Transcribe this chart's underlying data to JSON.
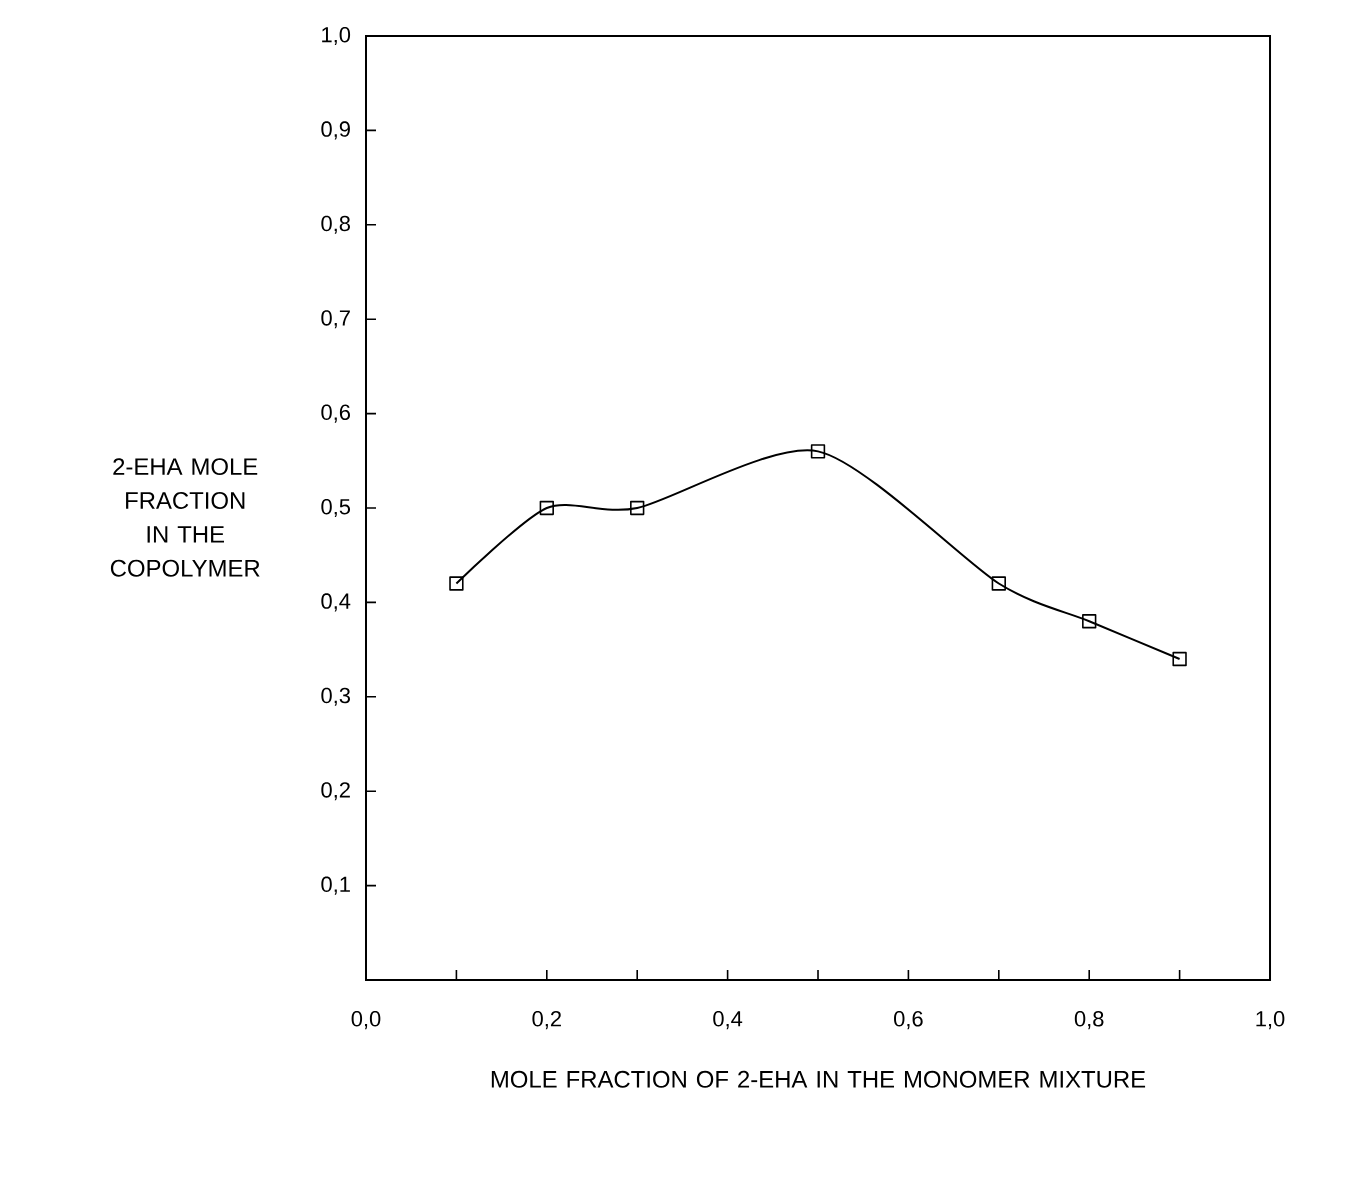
{
  "chart_data": {
    "type": "line",
    "xlabel": "MOLE FRACTION OF 2-EHA IN THE MONOMER MIXTURE",
    "ylabel": "2-EHA MOLE FRACTION IN THE COPOLYMER",
    "x": [
      0.1,
      0.2,
      0.3,
      0.5,
      0.7,
      0.8,
      0.9
    ],
    "series": [
      {
        "color": "#000000",
        "values": [
          0.42,
          0.5,
          0.5,
          0.56,
          0.42,
          0.38,
          0.34
        ]
      }
    ],
    "xlim": [
      0,
      1
    ],
    "ylim": [
      0,
      1
    ],
    "xticks": [
      {
        "value": 0,
        "label": "0,0"
      },
      {
        "value": 0.1,
        "label": null
      },
      {
        "value": 0.2,
        "label": "0,2"
      },
      {
        "value": 0.3,
        "label": null
      },
      {
        "value": 0.4,
        "label": "0,4"
      },
      {
        "value": 0.5,
        "label": null
      },
      {
        "value": 0.6,
        "label": "0,6"
      },
      {
        "value": 0.7,
        "label": null
      },
      {
        "value": 0.8,
        "label": "0,8"
      },
      {
        "value": 0.9,
        "label": null
      },
      {
        "value": 1,
        "label": "1,0"
      }
    ],
    "yticks": [
      {
        "value": 0.1,
        "label": "0,1"
      },
      {
        "value": 0.2,
        "label": "0,2"
      },
      {
        "value": 0.3,
        "label": "0,3"
      },
      {
        "value": 0.4,
        "label": "0,4"
      },
      {
        "value": 0.5,
        "label": "0,5"
      },
      {
        "value": 0.6,
        "label": "0,6"
      },
      {
        "value": 0.7,
        "label": "0,7"
      },
      {
        "value": 0.8,
        "label": "0,8"
      },
      {
        "value": 0.9,
        "label": "0,9"
      },
      {
        "value": 1,
        "label": "1,0"
      }
    ],
    "marker": "square",
    "line_style": "solid",
    "grid": false
  }
}
